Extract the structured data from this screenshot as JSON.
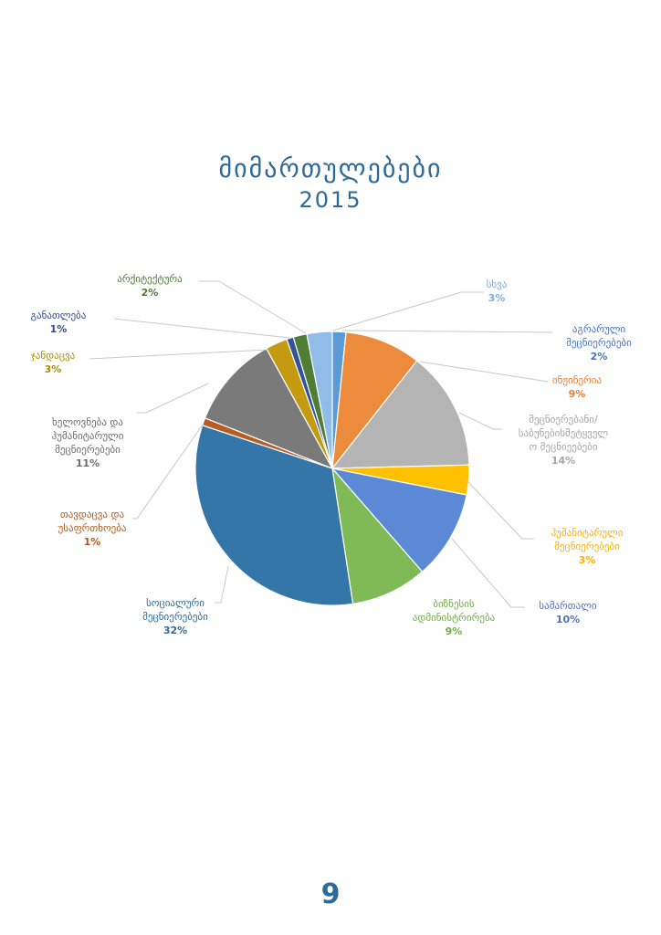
{
  "page": {
    "number": "9"
  },
  "chart_data": {
    "type": "pie",
    "title": "მიმართულებები",
    "subtitle": "2015",
    "slices": [
      {
        "label": "სხვა",
        "pct": "3%",
        "value": 3,
        "color": "#8fbde8",
        "label_color": "#7aaee0"
      },
      {
        "label": "აგრარული მეცნიერებები",
        "pct": "2%",
        "value": 1.6,
        "color": "#5b9bd5",
        "label_color": "#4472c4"
      },
      {
        "label": "ინჟინერია",
        "pct": "9%",
        "value": 9,
        "color": "#ed8b3d",
        "label_color": "#ed7d31"
      },
      {
        "label": "მეცნიერებანი/ საბუნებისმეტყველო მეცნიერებები",
        "pct": "14%",
        "value": 14,
        "color": "#b4b4b4",
        "label_color": "#a5a5a5"
      },
      {
        "label": "ჰუმანიტარული მეცნიერებები",
        "pct": "3%",
        "value": 3.5,
        "color": "#ffc000",
        "label_color": "#ffb000"
      },
      {
        "label": "სამართალი",
        "pct": "10%",
        "value": 10.5,
        "color": "#5b89d6",
        "label_color": "#4f71be"
      },
      {
        "label": "ბიზნესის ადმინისტრირება",
        "pct": "9%",
        "value": 9,
        "color": "#7fba57",
        "label_color": "#70ad47"
      },
      {
        "label": "სოციალური მეცნიერებები",
        "pct": "32%",
        "value": 32.5,
        "color": "#3476a8",
        "label_color": "#2e6a99"
      },
      {
        "label": "თავდაცვა და უსაფრთხოება",
        "pct": "1%",
        "value": 0.9,
        "color": "#b75d22",
        "label_color": "#b05a1f"
      },
      {
        "label": "ხელოვნება და ჰუმანიტარული მეცნიერებები",
        "pct": "11%",
        "value": 11,
        "color": "#7a7a7a",
        "label_color": "#6b6b6b"
      },
      {
        "label": "ჯანდაცვა",
        "pct": "3%",
        "value": 2.6,
        "color": "#c39a10",
        "label_color": "#b08a00"
      },
      {
        "label": "განათლება",
        "pct": "1%",
        "value": 0.8,
        "color": "#34529b",
        "label_color": "#2f4a90"
      },
      {
        "label": "არქიტექტურა",
        "pct": "2%",
        "value": 1.6,
        "color": "#4f7d35",
        "label_color": "#4a7a30"
      }
    ]
  }
}
